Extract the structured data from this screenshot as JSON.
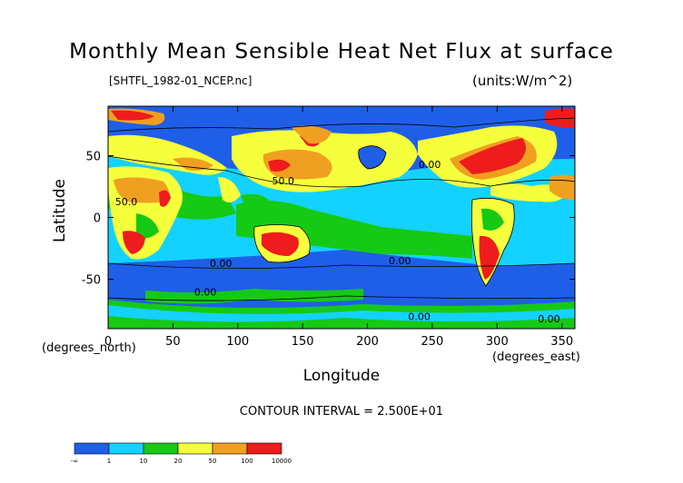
{
  "title": "Monthly Mean Sensible Heat Net Flux at surface",
  "file_label": "[SHTFL_1982-01_NCEP.nc]",
  "units_label": "(units:W/m^2)",
  "y_axis": {
    "label": "Latitude",
    "unit_label": "(degrees_north)",
    "ticks": [
      {
        "value": 50,
        "label": "50"
      },
      {
        "value": 0,
        "label": "0"
      },
      {
        "value": -50,
        "label": "-50"
      }
    ],
    "range": [
      -90,
      90
    ]
  },
  "x_axis": {
    "label": "Longitude",
    "unit_label": "(degrees_east)",
    "ticks": [
      {
        "value": 0,
        "label": "0"
      },
      {
        "value": 50,
        "label": "50"
      },
      {
        "value": 100,
        "label": "100"
      },
      {
        "value": 150,
        "label": "150"
      },
      {
        "value": 200,
        "label": "200"
      },
      {
        "value": 250,
        "label": "250"
      },
      {
        "value": 300,
        "label": "300"
      },
      {
        "value": 350,
        "label": "350"
      }
    ],
    "range": [
      0,
      360
    ]
  },
  "contour_interval": "CONTOUR INTERVAL = 2.500E+01",
  "contour_labels": [
    {
      "text": "50.0",
      "lon": 14,
      "lat": 10
    },
    {
      "text": "50.0",
      "lon": 135,
      "lat": 27
    },
    {
      "text": "0.00",
      "lon": 248,
      "lat": 40
    },
    {
      "text": "0.00",
      "lon": 87,
      "lat": -40
    },
    {
      "text": "0.00",
      "lon": 225,
      "lat": -38
    },
    {
      "text": "0.00",
      "lon": 75,
      "lat": -63
    },
    {
      "text": "0.00",
      "lon": 240,
      "lat": -83
    },
    {
      "text": "0.00",
      "lon": 340,
      "lat": -85
    }
  ],
  "colorbar": {
    "colors": [
      "#1f5fe8",
      "#14d2ff",
      "#15c915",
      "#f5ff3c",
      "#f0a020",
      "#ee1c1c"
    ],
    "labels": [
      "-∞",
      "1",
      "10",
      "20",
      "50",
      "100",
      "10000"
    ]
  },
  "palette": {
    "ocean_low": "#1f5fe8",
    "ocean_mid": "#14d2ff",
    "mid": "#15c915",
    "warm": "#f5ff3c",
    "hot": "#f0a020",
    "extreme": "#ee1c1c"
  }
}
